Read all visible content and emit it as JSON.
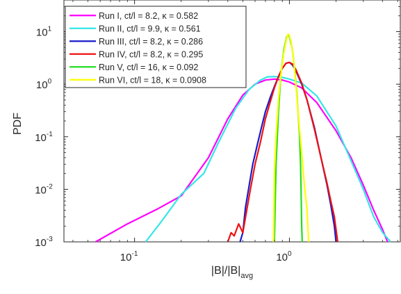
{
  "chart_data": {
    "type": "line",
    "xscale": "log",
    "yscale": "log",
    "xlim": [
      0.035,
      5.2
    ],
    "ylim": [
      0.001,
      40
    ],
    "xlabel": {
      "main": "|B|/|B|",
      "sub": "avg"
    },
    "ylabel": "PDF",
    "xticks": [
      {
        "value": 0.1,
        "base": "10",
        "exp": "-1"
      },
      {
        "value": 1,
        "base": "10",
        "exp": "0"
      }
    ],
    "yticks": [
      {
        "value": 0.001,
        "base": "10",
        "exp": "-3"
      },
      {
        "value": 0.01,
        "base": "10",
        "exp": "-2"
      },
      {
        "value": 0.1,
        "base": "10",
        "exp": "-1"
      },
      {
        "value": 1,
        "base": "10",
        "exp": "0"
      },
      {
        "value": 10,
        "base": "10",
        "exp": "1"
      }
    ],
    "grid": false,
    "legend_position": "top-left",
    "series": [
      {
        "name": "Run I, ct/l = 8.2, κ = 0.582",
        "color": "#ff00ff",
        "points": [
          [
            0.056,
            0.001
          ],
          [
            0.09,
            0.0022
          ],
          [
            0.14,
            0.0042
          ],
          [
            0.2,
            0.0075
          ],
          [
            0.3,
            0.04
          ],
          [
            0.4,
            0.22
          ],
          [
            0.5,
            0.62
          ],
          [
            0.6,
            1.0
          ],
          [
            0.7,
            1.2
          ],
          [
            0.8,
            1.25
          ],
          [
            0.9,
            1.2
          ],
          [
            1.0,
            1.1
          ],
          [
            1.2,
            0.85
          ],
          [
            1.5,
            0.45
          ],
          [
            2.0,
            0.13
          ],
          [
            2.5,
            0.04
          ],
          [
            3.0,
            0.012
          ],
          [
            3.5,
            0.004
          ],
          [
            4.0,
            0.0017
          ],
          [
            4.3,
            0.001
          ]
        ]
      },
      {
        "name": "Run II, ct/l = 9.9, κ = 0.561",
        "color": "#33e6e6",
        "points": [
          [
            0.118,
            0.001
          ],
          [
            0.15,
            0.0025
          ],
          [
            0.2,
            0.008
          ],
          [
            0.28,
            0.02
          ],
          [
            0.35,
            0.08
          ],
          [
            0.45,
            0.35
          ],
          [
            0.55,
            0.8
          ],
          [
            0.65,
            1.2
          ],
          [
            0.72,
            1.38
          ],
          [
            0.8,
            1.4
          ],
          [
            0.9,
            1.35
          ],
          [
            1.0,
            1.25
          ],
          [
            1.2,
            1.05
          ],
          [
            1.5,
            0.6
          ],
          [
            2.0,
            0.16
          ],
          [
            2.5,
            0.035
          ],
          [
            3.0,
            0.01
          ],
          [
            3.5,
            0.003
          ],
          [
            4.0,
            0.0015
          ],
          [
            4.5,
            0.001
          ]
        ]
      },
      {
        "name": "Run III, ct/l = 8.2, κ = 0.286",
        "color": "#1a1acc",
        "points": [
          [
            0.48,
            0.001
          ],
          [
            0.5,
            0.0015
          ],
          [
            0.52,
            0.0045
          ],
          [
            0.55,
            0.012
          ],
          [
            0.58,
            0.03
          ],
          [
            0.62,
            0.07
          ],
          [
            0.66,
            0.15
          ],
          [
            0.7,
            0.3
          ],
          [
            0.75,
            0.55
          ],
          [
            0.8,
            0.9
          ],
          [
            0.85,
            1.4
          ],
          [
            0.9,
            2.0
          ],
          [
            0.95,
            2.5
          ],
          [
            1.0,
            2.6
          ],
          [
            1.05,
            2.3
          ],
          [
            1.1,
            1.8
          ],
          [
            1.2,
            1.0
          ],
          [
            1.3,
            0.5
          ],
          [
            1.45,
            0.15
          ],
          [
            1.6,
            0.04
          ],
          [
            1.75,
            0.012
          ],
          [
            1.85,
            0.005
          ],
          [
            1.95,
            0.002
          ],
          [
            2.0,
            0.001
          ]
        ]
      },
      {
        "name": "Run IV, ct/l = 8.2, κ = 0.295",
        "color": "#ee1111",
        "points": [
          [
            0.4,
            0.001
          ],
          [
            0.42,
            0.0015
          ],
          [
            0.44,
            0.0013
          ],
          [
            0.47,
            0.0022
          ],
          [
            0.5,
            0.0015
          ],
          [
            0.53,
            0.004
          ],
          [
            0.56,
            0.01
          ],
          [
            0.6,
            0.03
          ],
          [
            0.65,
            0.08
          ],
          [
            0.7,
            0.22
          ],
          [
            0.75,
            0.45
          ],
          [
            0.8,
            0.85
          ],
          [
            0.85,
            1.4
          ],
          [
            0.9,
            2.0
          ],
          [
            0.95,
            2.5
          ],
          [
            1.0,
            2.6
          ],
          [
            1.05,
            2.4
          ],
          [
            1.1,
            1.9
          ],
          [
            1.2,
            1.05
          ],
          [
            1.3,
            0.5
          ],
          [
            1.45,
            0.14
          ],
          [
            1.6,
            0.04
          ],
          [
            1.75,
            0.013
          ],
          [
            1.85,
            0.006
          ],
          [
            1.95,
            0.003
          ],
          [
            2.05,
            0.001
          ]
        ]
      },
      {
        "name": "Run V, ct/l = 16, κ = 0.092",
        "color": "#22dd22",
        "points": [
          [
            0.8,
            0.001
          ],
          [
            0.82,
            0.03
          ],
          [
            0.85,
            0.3
          ],
          [
            0.88,
            1.5
          ],
          [
            0.92,
            4.5
          ],
          [
            0.96,
            8.0
          ],
          [
            0.98,
            8.5
          ],
          [
            1.0,
            8.0
          ],
          [
            1.04,
            5.0
          ],
          [
            1.08,
            2.0
          ],
          [
            1.12,
            0.6
          ],
          [
            1.16,
            0.12
          ],
          [
            1.18,
            0.03
          ],
          [
            1.19,
            0.008
          ],
          [
            1.2,
            0.002
          ],
          [
            1.21,
            0.001
          ]
        ]
      },
      {
        "name": "Run VI, ct/l = 18, κ = 0.0908",
        "color": "#ffff00",
        "points": [
          [
            0.79,
            0.001
          ],
          [
            0.8,
            0.02
          ],
          [
            0.82,
            0.1
          ],
          [
            0.85,
            0.5
          ],
          [
            0.88,
            1.5
          ],
          [
            0.92,
            4.0
          ],
          [
            0.96,
            7.5
          ],
          [
            0.98,
            9.0
          ],
          [
            1.0,
            8.5
          ],
          [
            1.03,
            6.0
          ],
          [
            1.07,
            2.5
          ],
          [
            1.1,
            1.0
          ],
          [
            1.15,
            0.2
          ],
          [
            1.2,
            0.05
          ],
          [
            1.25,
            0.012
          ],
          [
            1.3,
            0.004
          ],
          [
            1.33,
            0.001
          ]
        ]
      }
    ]
  }
}
